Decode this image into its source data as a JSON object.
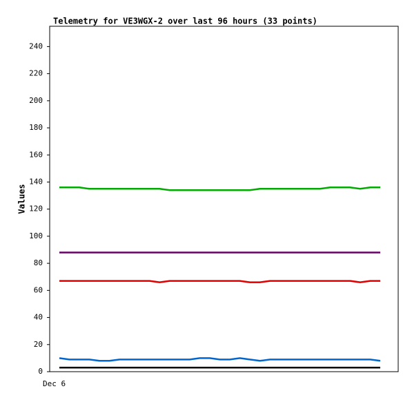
{
  "chart_data": {
    "type": "line",
    "title": "Telemetry for VE3WGX-2 over last 96 hours (33 points)",
    "y_label": "Values",
    "categories": [
      "Dec 6",
      null,
      null,
      null,
      null,
      null,
      null,
      null,
      null,
      null,
      null,
      null,
      null,
      null,
      null,
      null,
      null,
      null,
      null,
      null,
      null,
      null,
      null,
      null,
      null,
      null,
      null,
      null,
      null,
      null,
      null,
      null,
      null
    ],
    "ylim": [
      0,
      255
    ],
    "yticks": [
      0,
      20,
      40,
      60,
      80,
      100,
      120,
      140,
      160,
      180,
      200,
      220,
      240
    ],
    "series": [
      {
        "color": "#00aa00",
        "values": [
          136,
          136,
          136,
          135,
          135,
          135,
          135,
          135,
          135,
          135,
          135,
          134,
          134,
          134,
          134,
          134,
          134,
          134,
          134,
          134,
          135,
          135,
          135,
          135,
          135,
          135,
          135,
          136,
          136,
          136,
          135,
          136,
          136
        ]
      },
      {
        "color": "#660066",
        "values": [
          88,
          88,
          88,
          88,
          88,
          88,
          88,
          88,
          88,
          88,
          88,
          88,
          88,
          88,
          88,
          88,
          88,
          88,
          88,
          88,
          88,
          88,
          88,
          88,
          88,
          88,
          88,
          88,
          88,
          88,
          88,
          88,
          88
        ]
      },
      {
        "color": "#dd0000",
        "values": [
          67,
          67,
          67,
          67,
          67,
          67,
          67,
          67,
          67,
          67,
          66,
          67,
          67,
          67,
          67,
          67,
          67,
          67,
          67,
          66,
          66,
          67,
          67,
          67,
          67,
          67,
          67,
          67,
          67,
          67,
          66,
          67,
          67
        ]
      },
      {
        "color": "#0066cc",
        "values": [
          10,
          9,
          9,
          9,
          8,
          8,
          9,
          9,
          9,
          9,
          9,
          9,
          9,
          9,
          10,
          10,
          9,
          9,
          10,
          9,
          8,
          9,
          9,
          9,
          9,
          9,
          9,
          9,
          9,
          9,
          9,
          9,
          8
        ]
      },
      {
        "color": "#000000",
        "values": [
          3,
          3,
          3,
          3,
          3,
          3,
          3,
          3,
          3,
          3,
          3,
          3,
          3,
          3,
          3,
          3,
          3,
          3,
          3,
          3,
          3,
          3,
          3,
          3,
          3,
          3,
          3,
          3,
          3,
          3,
          3,
          3,
          3
        ]
      }
    ]
  }
}
